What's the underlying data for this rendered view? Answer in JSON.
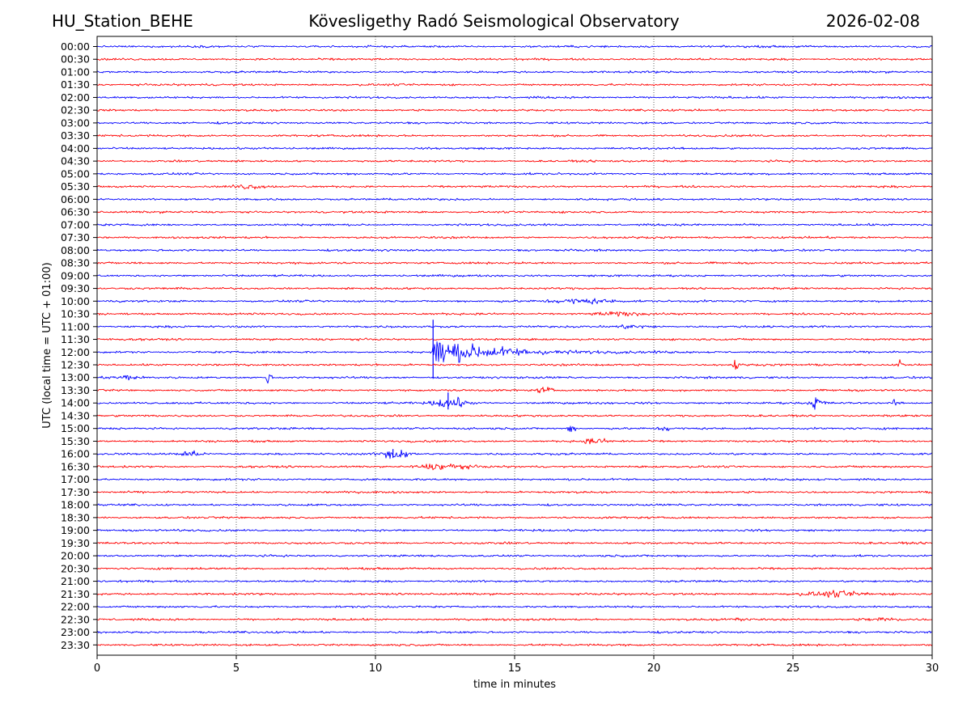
{
  "chart_data": {
    "type": "line",
    "title_left": "HU_Station_BEHE",
    "title": "Kövesligethy Radó Seismological Observatory",
    "title_right": "2026-02-08",
    "xlabel": "time in minutes",
    "ylabel": "UTC (local time = UTC + 01:00)",
    "xlim": [
      0,
      30
    ],
    "xticks": [
      "0",
      "5",
      "10",
      "15",
      "20",
      "25",
      "30"
    ],
    "grid": "vertical dotted at 5-minute steps",
    "colors": [
      "#0000ff",
      "#ff0000"
    ],
    "rows": [
      "00:00",
      "00:30",
      "01:00",
      "01:30",
      "02:00",
      "02:30",
      "03:00",
      "03:30",
      "04:00",
      "04:30",
      "05:00",
      "05:30",
      "06:00",
      "06:30",
      "07:00",
      "07:30",
      "08:00",
      "08:30",
      "09:00",
      "09:30",
      "10:00",
      "10:30",
      "11:00",
      "11:30",
      "12:00",
      "12:30",
      "13:00",
      "13:30",
      "14:00",
      "14:30",
      "15:00",
      "15:30",
      "16:00",
      "16:30",
      "17:00",
      "17:30",
      "18:00",
      "18:30",
      "19:00",
      "19:30",
      "20:00",
      "20:30",
      "21:00",
      "21:30",
      "22:00",
      "22:30",
      "23:00",
      "23:30"
    ],
    "events": [
      {
        "row": "05:30",
        "start": 4.8,
        "dur": 1.2,
        "amp": 2.0,
        "kind": "burst"
      },
      {
        "row": "10:00",
        "start": 16.2,
        "dur": 2.6,
        "amp": 2.2,
        "kind": "burst"
      },
      {
        "row": "10:30",
        "start": 17.8,
        "dur": 1.8,
        "amp": 1.6,
        "kind": "burst"
      },
      {
        "row": "11:00",
        "start": 18.5,
        "dur": 1.4,
        "amp": 1.4,
        "kind": "burst"
      },
      {
        "row": "12:00",
        "start": 12.05,
        "dur": 5.5,
        "amp": 14.0,
        "kind": "quake",
        "spike_up": 40,
        "spike_down": 33
      },
      {
        "row": "12:30",
        "start": 22.8,
        "dur": 0.3,
        "amp": 6.0,
        "kind": "spike"
      },
      {
        "row": "12:30",
        "start": 28.7,
        "dur": 0.3,
        "amp": 5.0,
        "kind": "spike"
      },
      {
        "row": "13:00",
        "start": 0.5,
        "dur": 1.0,
        "amp": 2.0,
        "kind": "burst"
      },
      {
        "row": "13:00",
        "start": 6.0,
        "dur": 0.3,
        "amp": 5.5,
        "kind": "spike"
      },
      {
        "row": "13:30",
        "start": 15.8,
        "dur": 0.6,
        "amp": 3.0,
        "kind": "burst"
      },
      {
        "row": "14:00",
        "start": 11.8,
        "dur": 1.8,
        "amp": 5.0,
        "kind": "quake_small",
        "spike_up": 13,
        "spike_down": 8
      },
      {
        "row": "14:00",
        "start": 25.6,
        "dur": 0.6,
        "amp": 7.0,
        "kind": "spike"
      },
      {
        "row": "14:00",
        "start": 28.5,
        "dur": 0.4,
        "amp": 3.0,
        "kind": "spike"
      },
      {
        "row": "15:00",
        "start": 16.9,
        "dur": 0.3,
        "amp": 6.0,
        "kind": "spike"
      },
      {
        "row": "15:00",
        "start": 20.2,
        "dur": 0.4,
        "amp": 2.5,
        "kind": "burst"
      },
      {
        "row": "15:30",
        "start": 17.4,
        "dur": 1.0,
        "amp": 2.2,
        "kind": "burst"
      },
      {
        "row": "16:00",
        "start": 2.9,
        "dur": 0.8,
        "amp": 2.5,
        "kind": "burst"
      },
      {
        "row": "16:00",
        "start": 10.0,
        "dur": 1.4,
        "amp": 6.0,
        "kind": "quake_small",
        "spike_up": 6,
        "spike_down": 5
      },
      {
        "row": "16:30",
        "start": 11.5,
        "dur": 1.8,
        "amp": 3.0,
        "kind": "burst"
      },
      {
        "row": "21:30",
        "start": 25.3,
        "dur": 2.5,
        "amp": 2.2,
        "kind": "burst"
      },
      {
        "row": "22:30",
        "start": 22.8,
        "dur": 0.5,
        "amp": 2.0,
        "kind": "burst"
      },
      {
        "row": "22:30",
        "start": 27.5,
        "dur": 1.3,
        "amp": 1.8,
        "kind": "burst"
      }
    ]
  }
}
